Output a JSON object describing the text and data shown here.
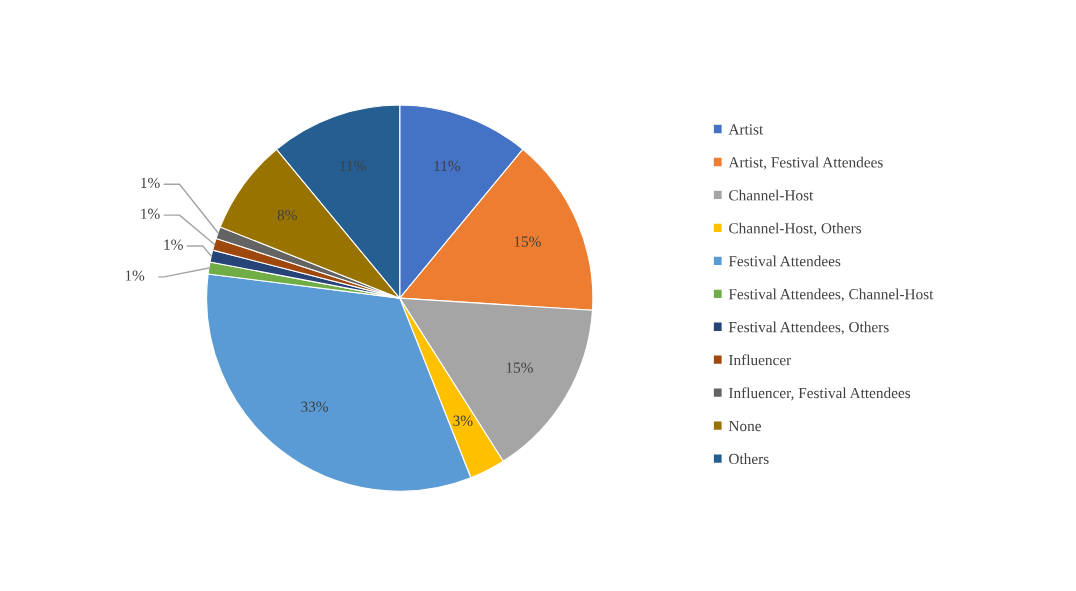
{
  "chart_data": {
    "type": "pie",
    "categories": [
      "Artist",
      "Artist, Festival Attendees",
      "Channel-Host",
      "Channel-Host, Others",
      "Festival Attendees",
      "Festival Attendees, Channel-Host",
      "Festival Attendees, Others",
      "Influencer",
      "Influencer, Festival Attendees",
      "None",
      "Others"
    ],
    "values": [
      11,
      15,
      15,
      3,
      33,
      1,
      1,
      1,
      1,
      8,
      11
    ],
    "value_labels": [
      "11%",
      "15%",
      "15%",
      "3%",
      "33%",
      "1%",
      "1%",
      "1%",
      "1%",
      "8%",
      "11%"
    ],
    "colors": [
      "#4472c4",
      "#ed7d31",
      "#a5a5a5",
      "#ffc000",
      "#5b9bd5",
      "#70ad47",
      "#264478",
      "#9e480e",
      "#636363",
      "#997300",
      "#255e91"
    ],
    "legend": "right"
  }
}
